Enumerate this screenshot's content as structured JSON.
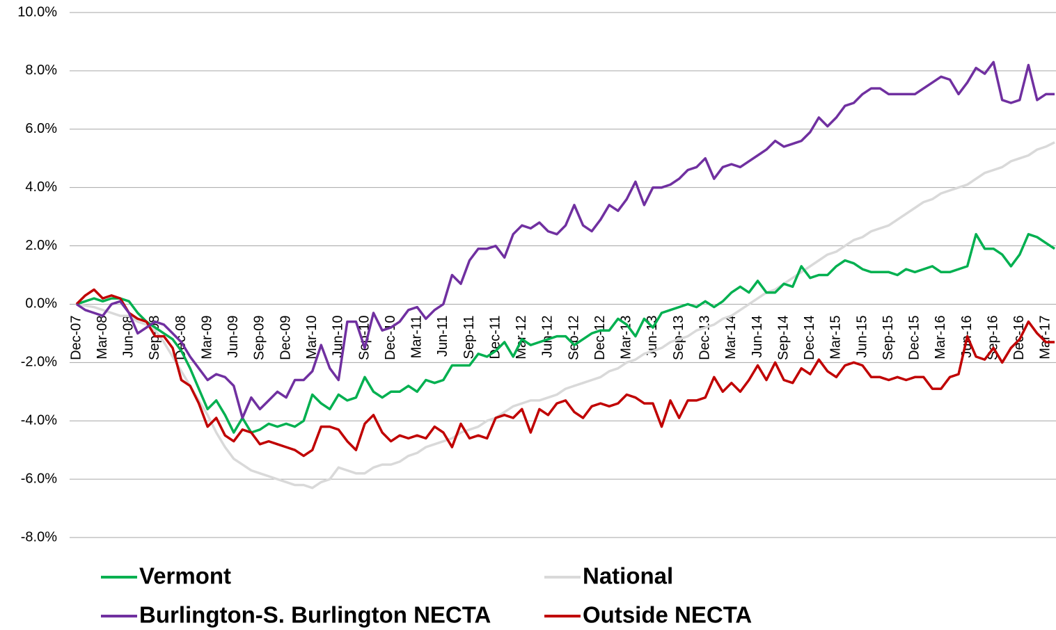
{
  "chart_data": {
    "type": "line",
    "categories": [
      "Dec-07",
      null,
      null,
      "Mar-08",
      null,
      null,
      "Jun-08",
      null,
      null,
      "Sep-08",
      null,
      null,
      "Dec-08",
      null,
      null,
      "Mar-09",
      null,
      null,
      "Jun-09",
      null,
      null,
      "Sep-09",
      null,
      null,
      "Dec-09",
      null,
      null,
      "Mar-10",
      null,
      null,
      "Jun-10",
      null,
      null,
      "Sep-10",
      null,
      null,
      "Dec-10",
      null,
      null,
      "Mar-11",
      null,
      null,
      "Jun-11",
      null,
      null,
      "Sep-11",
      null,
      null,
      "Dec-11",
      null,
      null,
      "Mar-12",
      null,
      null,
      "Jun-12",
      null,
      null,
      "Sep-12",
      null,
      null,
      "Dec-12",
      null,
      null,
      "Mar-13",
      null,
      null,
      "Jun-13",
      null,
      null,
      "Sep-13",
      null,
      null,
      "Dec-13",
      null,
      null,
      "Mar-14",
      null,
      null,
      "Jun-14",
      null,
      null,
      "Sep-14",
      null,
      null,
      "Dec-14",
      null,
      null,
      "Mar-15",
      null,
      null,
      "Jun-15",
      null,
      null,
      "Sep-15",
      null,
      null,
      "Dec-15",
      null,
      null,
      "Mar-16",
      null,
      null,
      "Jun-16",
      null,
      null,
      "Sep-16",
      null,
      null,
      "Dec-16",
      null,
      null,
      "Mar-17",
      null
    ],
    "series": [
      {
        "name": "Vermont",
        "color": "#00b050",
        "values": [
          0,
          0.1,
          0.2,
          0.1,
          0.2,
          0.2,
          0.1,
          -0.3,
          -0.6,
          -0.8,
          -1.0,
          -1.2,
          -1.6,
          -2.2,
          -2.9,
          -3.6,
          -3.3,
          -3.8,
          -4.4,
          -3.9,
          -4.4,
          -4.3,
          -4.1,
          -4.2,
          -4.1,
          -4.2,
          -4.0,
          -3.1,
          -3.4,
          -3.6,
          -3.1,
          -3.3,
          -3.2,
          -2.5,
          -3.0,
          -3.2,
          -3.0,
          -3.0,
          -2.8,
          -3.0,
          -2.6,
          -2.7,
          -2.6,
          -2.1,
          -2.1,
          -2.1,
          -1.7,
          -1.8,
          -1.6,
          -1.3,
          -1.8,
          -1.2,
          -1.4,
          -1.3,
          -1.2,
          -1.1,
          -1.1,
          -1.4,
          -1.2,
          -1.0,
          -0.9,
          -0.9,
          -0.5,
          -0.7,
          -1.1,
          -0.5,
          -0.8,
          -0.3,
          -0.2,
          -0.1,
          0.0,
          -0.1,
          0.1,
          -0.1,
          0.1,
          0.4,
          0.6,
          0.4,
          0.8,
          0.4,
          0.4,
          0.7,
          0.6,
          1.3,
          0.9,
          1.0,
          1.0,
          1.3,
          1.5,
          1.4,
          1.2,
          1.1,
          1.1,
          1.1,
          1.0,
          1.2,
          1.1,
          1.2,
          1.3,
          1.1,
          1.1,
          1.2,
          1.3,
          2.4,
          1.9,
          1.9,
          1.7,
          1.3,
          1.7,
          2.4,
          2.3,
          2.1,
          1.9
        ]
      },
      {
        "name": "National",
        "color": "#d9d9d9",
        "values": [
          0,
          -0.05,
          -0.1,
          -0.2,
          -0.3,
          -0.4,
          -0.4,
          -0.6,
          -0.7,
          -0.9,
          -1.3,
          -1.8,
          -2.3,
          -2.8,
          -3.3,
          -3.8,
          -4.4,
          -4.9,
          -5.3,
          -5.5,
          -5.7,
          -5.8,
          -5.9,
          -6.0,
          -6.1,
          -6.2,
          -6.2,
          -6.3,
          -6.1,
          -6.0,
          -5.6,
          -5.7,
          -5.8,
          -5.8,
          -5.6,
          -5.5,
          -5.5,
          -5.4,
          -5.2,
          -5.1,
          -4.9,
          -4.8,
          -4.7,
          -4.6,
          -4.4,
          -4.3,
          -4.2,
          -4.0,
          -3.9,
          -3.7,
          -3.5,
          -3.4,
          -3.3,
          -3.3,
          -3.2,
          -3.1,
          -2.9,
          -2.8,
          -2.7,
          -2.6,
          -2.5,
          -2.3,
          -2.2,
          -2.0,
          -1.9,
          -1.7,
          -1.6,
          -1.5,
          -1.3,
          -1.2,
          -1.1,
          -0.9,
          -0.8,
          -0.7,
          -0.5,
          -0.4,
          -0.2,
          0.0,
          0.2,
          0.4,
          0.5,
          0.7,
          0.9,
          1.1,
          1.3,
          1.5,
          1.7,
          1.8,
          2.0,
          2.2,
          2.3,
          2.5,
          2.6,
          2.7,
          2.9,
          3.1,
          3.3,
          3.5,
          3.6,
          3.8,
          3.9,
          4.0,
          4.1,
          4.3,
          4.5,
          4.6,
          4.7,
          4.9,
          5.0,
          5.1,
          5.3,
          5.4,
          5.55
        ]
      },
      {
        "name": "Burlington-S. Burlington NECTA",
        "color": "#7030a0",
        "values": [
          0,
          -0.2,
          -0.3,
          -0.4,
          0.0,
          0.1,
          -0.3,
          -1.0,
          -0.8,
          -0.6,
          -0.7,
          -1.0,
          -1.3,
          -1.8,
          -2.2,
          -2.6,
          -2.4,
          -2.5,
          -2.8,
          -3.9,
          -3.2,
          -3.6,
          -3.3,
          -3.0,
          -3.2,
          -2.6,
          -2.6,
          -2.3,
          -1.4,
          -2.2,
          -2.6,
          -0.6,
          -0.6,
          -1.5,
          -0.3,
          -0.9,
          -0.8,
          -0.6,
          -0.2,
          -0.1,
          -0.5,
          -0.2,
          0.0,
          1.0,
          0.7,
          1.5,
          1.9,
          1.9,
          2.0,
          1.6,
          2.4,
          2.7,
          2.6,
          2.8,
          2.5,
          2.4,
          2.7,
          3.4,
          2.7,
          2.5,
          2.9,
          3.4,
          3.2,
          3.6,
          4.2,
          3.4,
          4.0,
          4.0,
          4.1,
          4.3,
          4.6,
          4.7,
          5.0,
          4.3,
          4.7,
          4.8,
          4.7,
          4.9,
          5.1,
          5.3,
          5.6,
          5.4,
          5.5,
          5.6,
          5.9,
          6.4,
          6.1,
          6.4,
          6.8,
          6.9,
          7.2,
          7.4,
          7.4,
          7.2,
          7.2,
          7.2,
          7.2,
          7.4,
          7.6,
          7.8,
          7.7,
          7.2,
          7.6,
          8.1,
          7.9,
          8.3,
          7.0,
          6.9,
          7.0,
          8.2,
          7.0,
          7.2,
          7.2
        ]
      },
      {
        "name": "Outside NECTA",
        "color": "#c00000",
        "values": [
          0,
          0.3,
          0.5,
          0.2,
          0.3,
          0.2,
          -0.3,
          -0.5,
          -0.6,
          -1.1,
          -1.1,
          -1.5,
          -2.6,
          -2.8,
          -3.4,
          -4.2,
          -3.9,
          -4.5,
          -4.7,
          -4.3,
          -4.4,
          -4.8,
          -4.7,
          -4.8,
          -4.9,
          -5.0,
          -5.2,
          -5.0,
          -4.2,
          -4.2,
          -4.3,
          -4.7,
          -5.0,
          -4.1,
          -3.8,
          -4.4,
          -4.7,
          -4.5,
          -4.6,
          -4.5,
          -4.6,
          -4.2,
          -4.4,
          -4.9,
          -4.1,
          -4.6,
          -4.5,
          -4.6,
          -3.9,
          -3.8,
          -3.9,
          -3.6,
          -4.4,
          -3.6,
          -3.8,
          -3.4,
          -3.3,
          -3.7,
          -3.9,
          -3.5,
          -3.4,
          -3.5,
          -3.4,
          -3.1,
          -3.2,
          -3.4,
          -3.4,
          -4.2,
          -3.3,
          -3.9,
          -3.3,
          -3.3,
          -3.2,
          -2.5,
          -3.0,
          -2.7,
          -3.0,
          -2.6,
          -2.1,
          -2.6,
          -2.0,
          -2.6,
          -2.7,
          -2.2,
          -2.4,
          -1.9,
          -2.3,
          -2.5,
          -2.1,
          -2.0,
          -2.1,
          -2.5,
          -2.5,
          -2.6,
          -2.5,
          -2.6,
          -2.5,
          -2.5,
          -2.9,
          -2.9,
          -2.5,
          -2.4,
          -1.1,
          -1.8,
          -1.9,
          -1.5,
          -2.0,
          -1.5,
          -1.2,
          -0.6,
          -1.0,
          -1.3,
          -1.3
        ]
      }
    ],
    "ylim": [
      -8,
      10
    ],
    "yticks": [
      {
        "value": 10,
        "label": "10.0%"
      },
      {
        "value": 8,
        "label": "8.0%"
      },
      {
        "value": 6,
        "label": "6.0%"
      },
      {
        "value": 4,
        "label": "4.0%"
      },
      {
        "value": 2,
        "label": "2.0%"
      },
      {
        "value": 0,
        "label": "0.0%"
      },
      {
        "value": -2,
        "label": "-2.0%"
      },
      {
        "value": -4,
        "label": "-4.0%"
      },
      {
        "value": -6,
        "label": "-6.0%"
      },
      {
        "value": -8,
        "label": "-8.0%"
      }
    ],
    "grid": true
  }
}
